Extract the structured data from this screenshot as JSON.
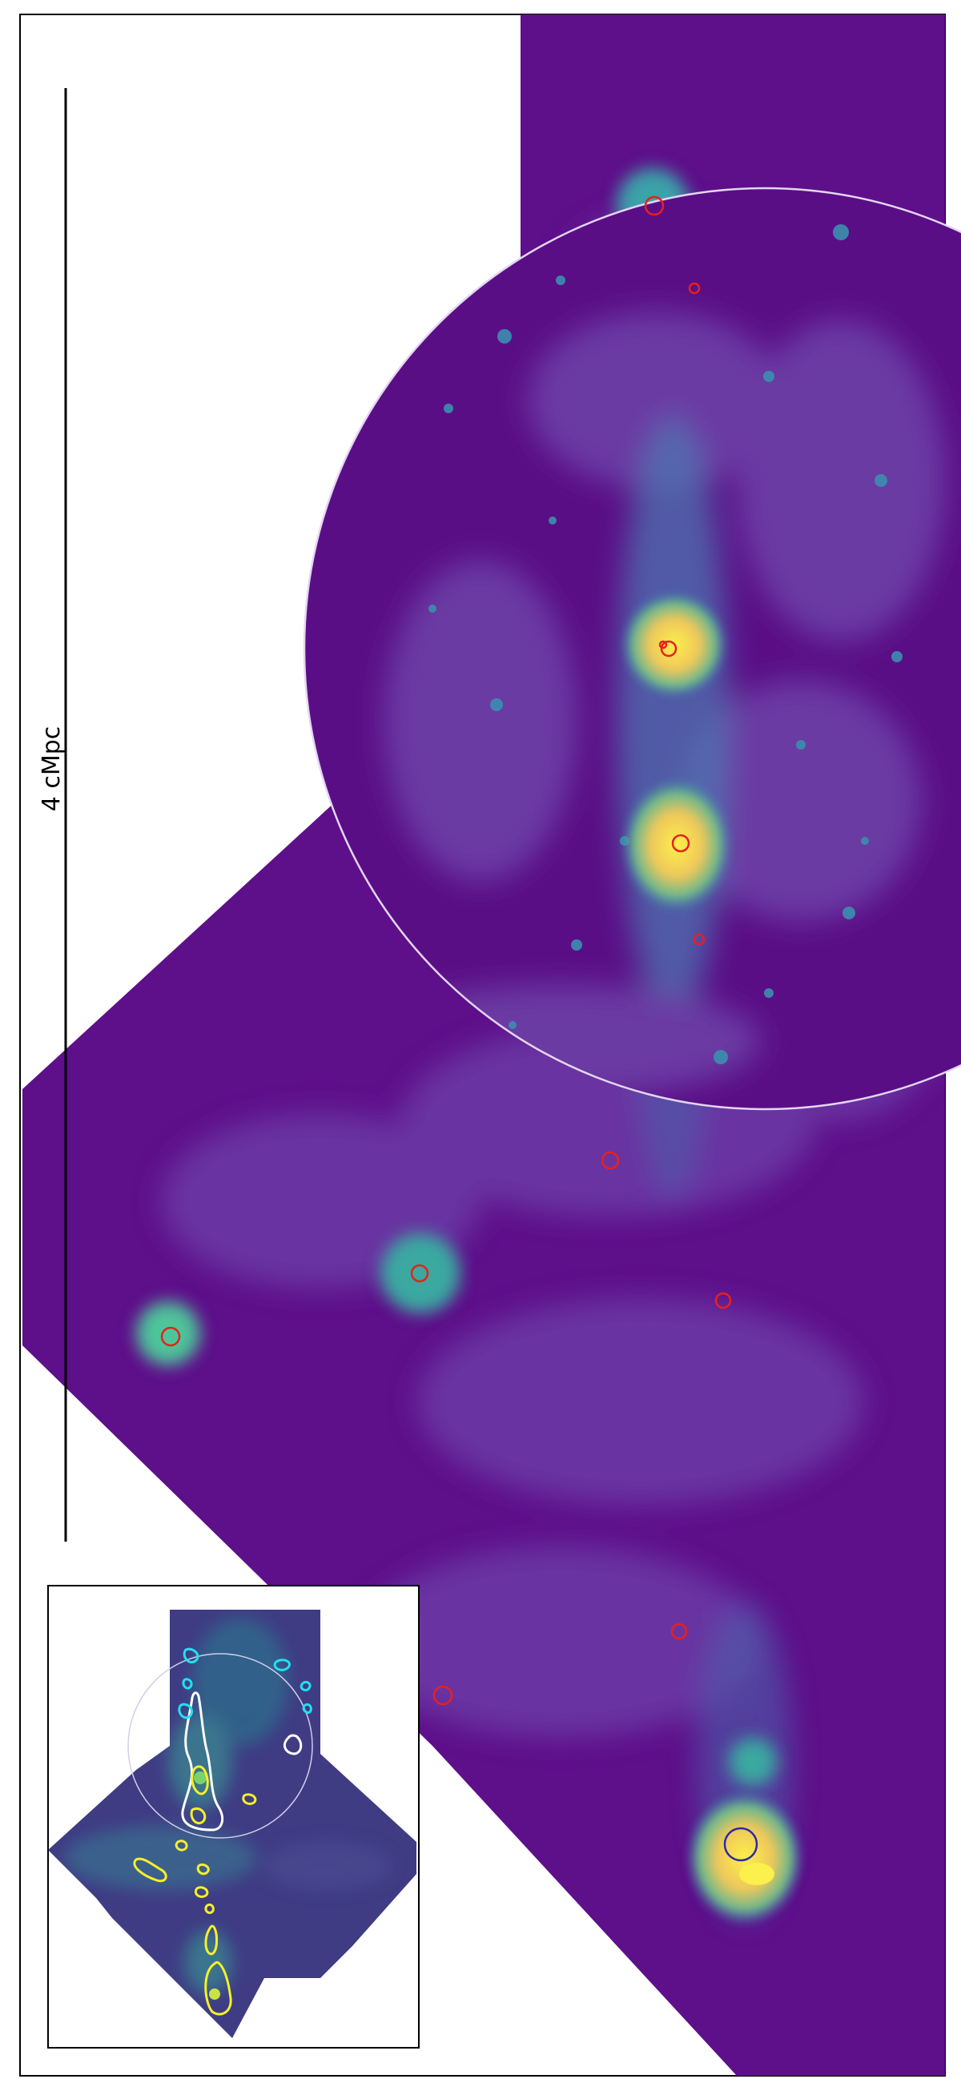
{
  "figure": {
    "scale_bar_label": "4 cMpc",
    "colors": {
      "background_low": "#5e0f8a",
      "background_mid": "#6a2aa0",
      "filament": "#3a7fb0",
      "bright_core": "#f2d25a",
      "peak": "#f9ef4a",
      "source_marker": "#e8201c",
      "target_marker": "#2b2ba8",
      "aperture_circle": "#d9c9ee",
      "inset_contour_white": "#ffffff",
      "inset_contour_cyan": "#22e0f0",
      "inset_contour_yellow": "#f5f028"
    },
    "markers": {
      "red_source_count": 14,
      "blue_target_count": 1
    },
    "inset": {
      "contour_colors": [
        "white",
        "cyan",
        "yellow"
      ]
    }
  }
}
